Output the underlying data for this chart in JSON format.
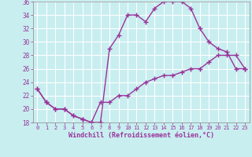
{
  "xlabel": "Windchill (Refroidissement éolien,°C)",
  "xlim": [
    -0.5,
    23.5
  ],
  "ylim": [
    18,
    36
  ],
  "yticks": [
    18,
    20,
    22,
    24,
    26,
    28,
    30,
    32,
    34,
    36
  ],
  "xticks": [
    0,
    1,
    2,
    3,
    4,
    5,
    6,
    7,
    8,
    9,
    10,
    11,
    12,
    13,
    14,
    15,
    16,
    17,
    18,
    19,
    20,
    21,
    22,
    23
  ],
  "bg_color": "#c8eef0",
  "line_color": "#993399",
  "line1_x": [
    0,
    1,
    2,
    3,
    4,
    5,
    6,
    7,
    8,
    9,
    10,
    11,
    12,
    13,
    14,
    15,
    16,
    17,
    18,
    19,
    20,
    21,
    22,
    23
  ],
  "line1_y": [
    23,
    21,
    20,
    20,
    19,
    18.5,
    18,
    18,
    29,
    31,
    34,
    34,
    33,
    35,
    36,
    36,
    36,
    35,
    32,
    30,
    29,
    28.5,
    26,
    26
  ],
  "line2_x": [
    0,
    1,
    2,
    3,
    4,
    5,
    6,
    7,
    8,
    9,
    10,
    11,
    12,
    13,
    14,
    15,
    16,
    17,
    18,
    19,
    20,
    21,
    22,
    23
  ],
  "line2_y": [
    23,
    21,
    20,
    20,
    19,
    18.5,
    18,
    21,
    21,
    22,
    22,
    23,
    24,
    24.5,
    25,
    25,
    25.5,
    26,
    26,
    27,
    28,
    28,
    28,
    26
  ],
  "marker": "+",
  "markersize": 4,
  "linewidth": 1.0
}
